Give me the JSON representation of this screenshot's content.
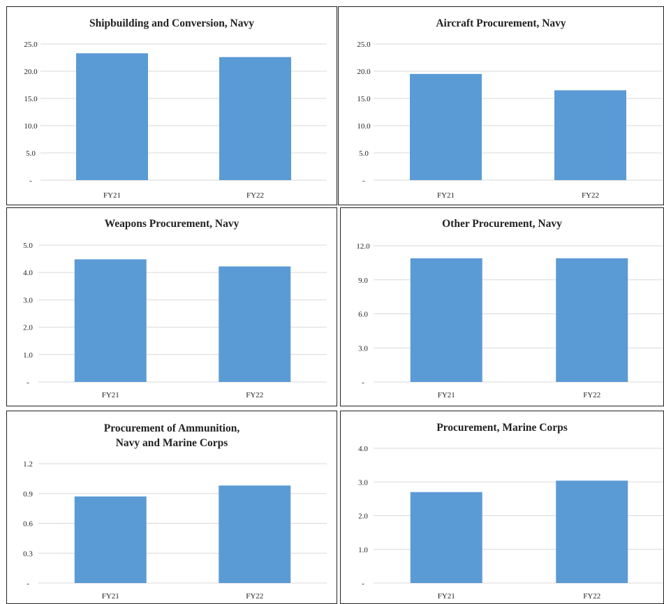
{
  "chart_data": [
    {
      "type": "bar",
      "title": [
        "Shipbuilding and Conversion, Navy"
      ],
      "categories": [
        "FY21",
        "FY22"
      ],
      "values": [
        23.3,
        22.6
      ],
      "ylim": [
        0,
        25
      ],
      "yticks": [
        0,
        5,
        10,
        15,
        20,
        25
      ],
      "ytick_labels": [
        "-",
        "5.0",
        "10.0",
        "15.0",
        "20.0",
        "25.0"
      ],
      "grid": true,
      "color": "#5b9bd5"
    },
    {
      "type": "bar",
      "title": [
        "Aircraft Procurement, Navy"
      ],
      "categories": [
        "FY21",
        "FY22"
      ],
      "values": [
        19.5,
        16.5
      ],
      "ylim": [
        0,
        25
      ],
      "yticks": [
        0,
        5,
        10,
        15,
        20,
        25
      ],
      "ytick_labels": [
        "-",
        "5.0",
        "10.0",
        "15.0",
        "20.0",
        "25.0"
      ],
      "grid": true,
      "color": "#5b9bd5"
    },
    {
      "type": "bar",
      "title": [
        "Weapons Procurement, Navy"
      ],
      "categories": [
        "FY21",
        "FY22"
      ],
      "values": [
        4.48,
        4.22
      ],
      "ylim": [
        0,
        5
      ],
      "yticks": [
        0,
        1,
        2,
        3,
        4,
        5
      ],
      "ytick_labels": [
        "-",
        "1.0",
        "2.0",
        "3.0",
        "4.0",
        "5.0"
      ],
      "grid": true,
      "color": "#5b9bd5"
    },
    {
      "type": "bar",
      "title": [
        "Other Procurement, Navy"
      ],
      "categories": [
        "FY21",
        "FY22"
      ],
      "values": [
        10.9,
        10.9
      ],
      "ylim": [
        0,
        12
      ],
      "yticks": [
        0,
        3,
        6,
        9,
        12
      ],
      "ytick_labels": [
        "-",
        "3.0",
        "6.0",
        "9.0",
        "12.0"
      ],
      "grid": true,
      "color": "#5b9bd5"
    },
    {
      "type": "bar",
      "title": [
        "Procurement of Ammunition,",
        "Navy and Marine Corps"
      ],
      "categories": [
        "FY21",
        "FY22"
      ],
      "values": [
        0.87,
        0.98
      ],
      "ylim": [
        0,
        1.2
      ],
      "yticks": [
        0,
        0.3,
        0.6,
        0.9,
        1.2
      ],
      "ytick_labels": [
        "-",
        "0.3",
        "0.6",
        "0.9",
        "1.2"
      ],
      "grid": true,
      "color": "#5b9bd5"
    },
    {
      "type": "bar",
      "title": [
        "Procurement, Marine Corps"
      ],
      "categories": [
        "FY21",
        "FY22"
      ],
      "values": [
        2.7,
        3.04
      ],
      "ylim": [
        0,
        4
      ],
      "yticks": [
        0,
        1,
        2,
        3,
        4
      ],
      "ytick_labels": [
        "-",
        "1.0",
        "2.0",
        "3.0",
        "4.0"
      ],
      "grid": true,
      "color": "#5b9bd5"
    }
  ]
}
